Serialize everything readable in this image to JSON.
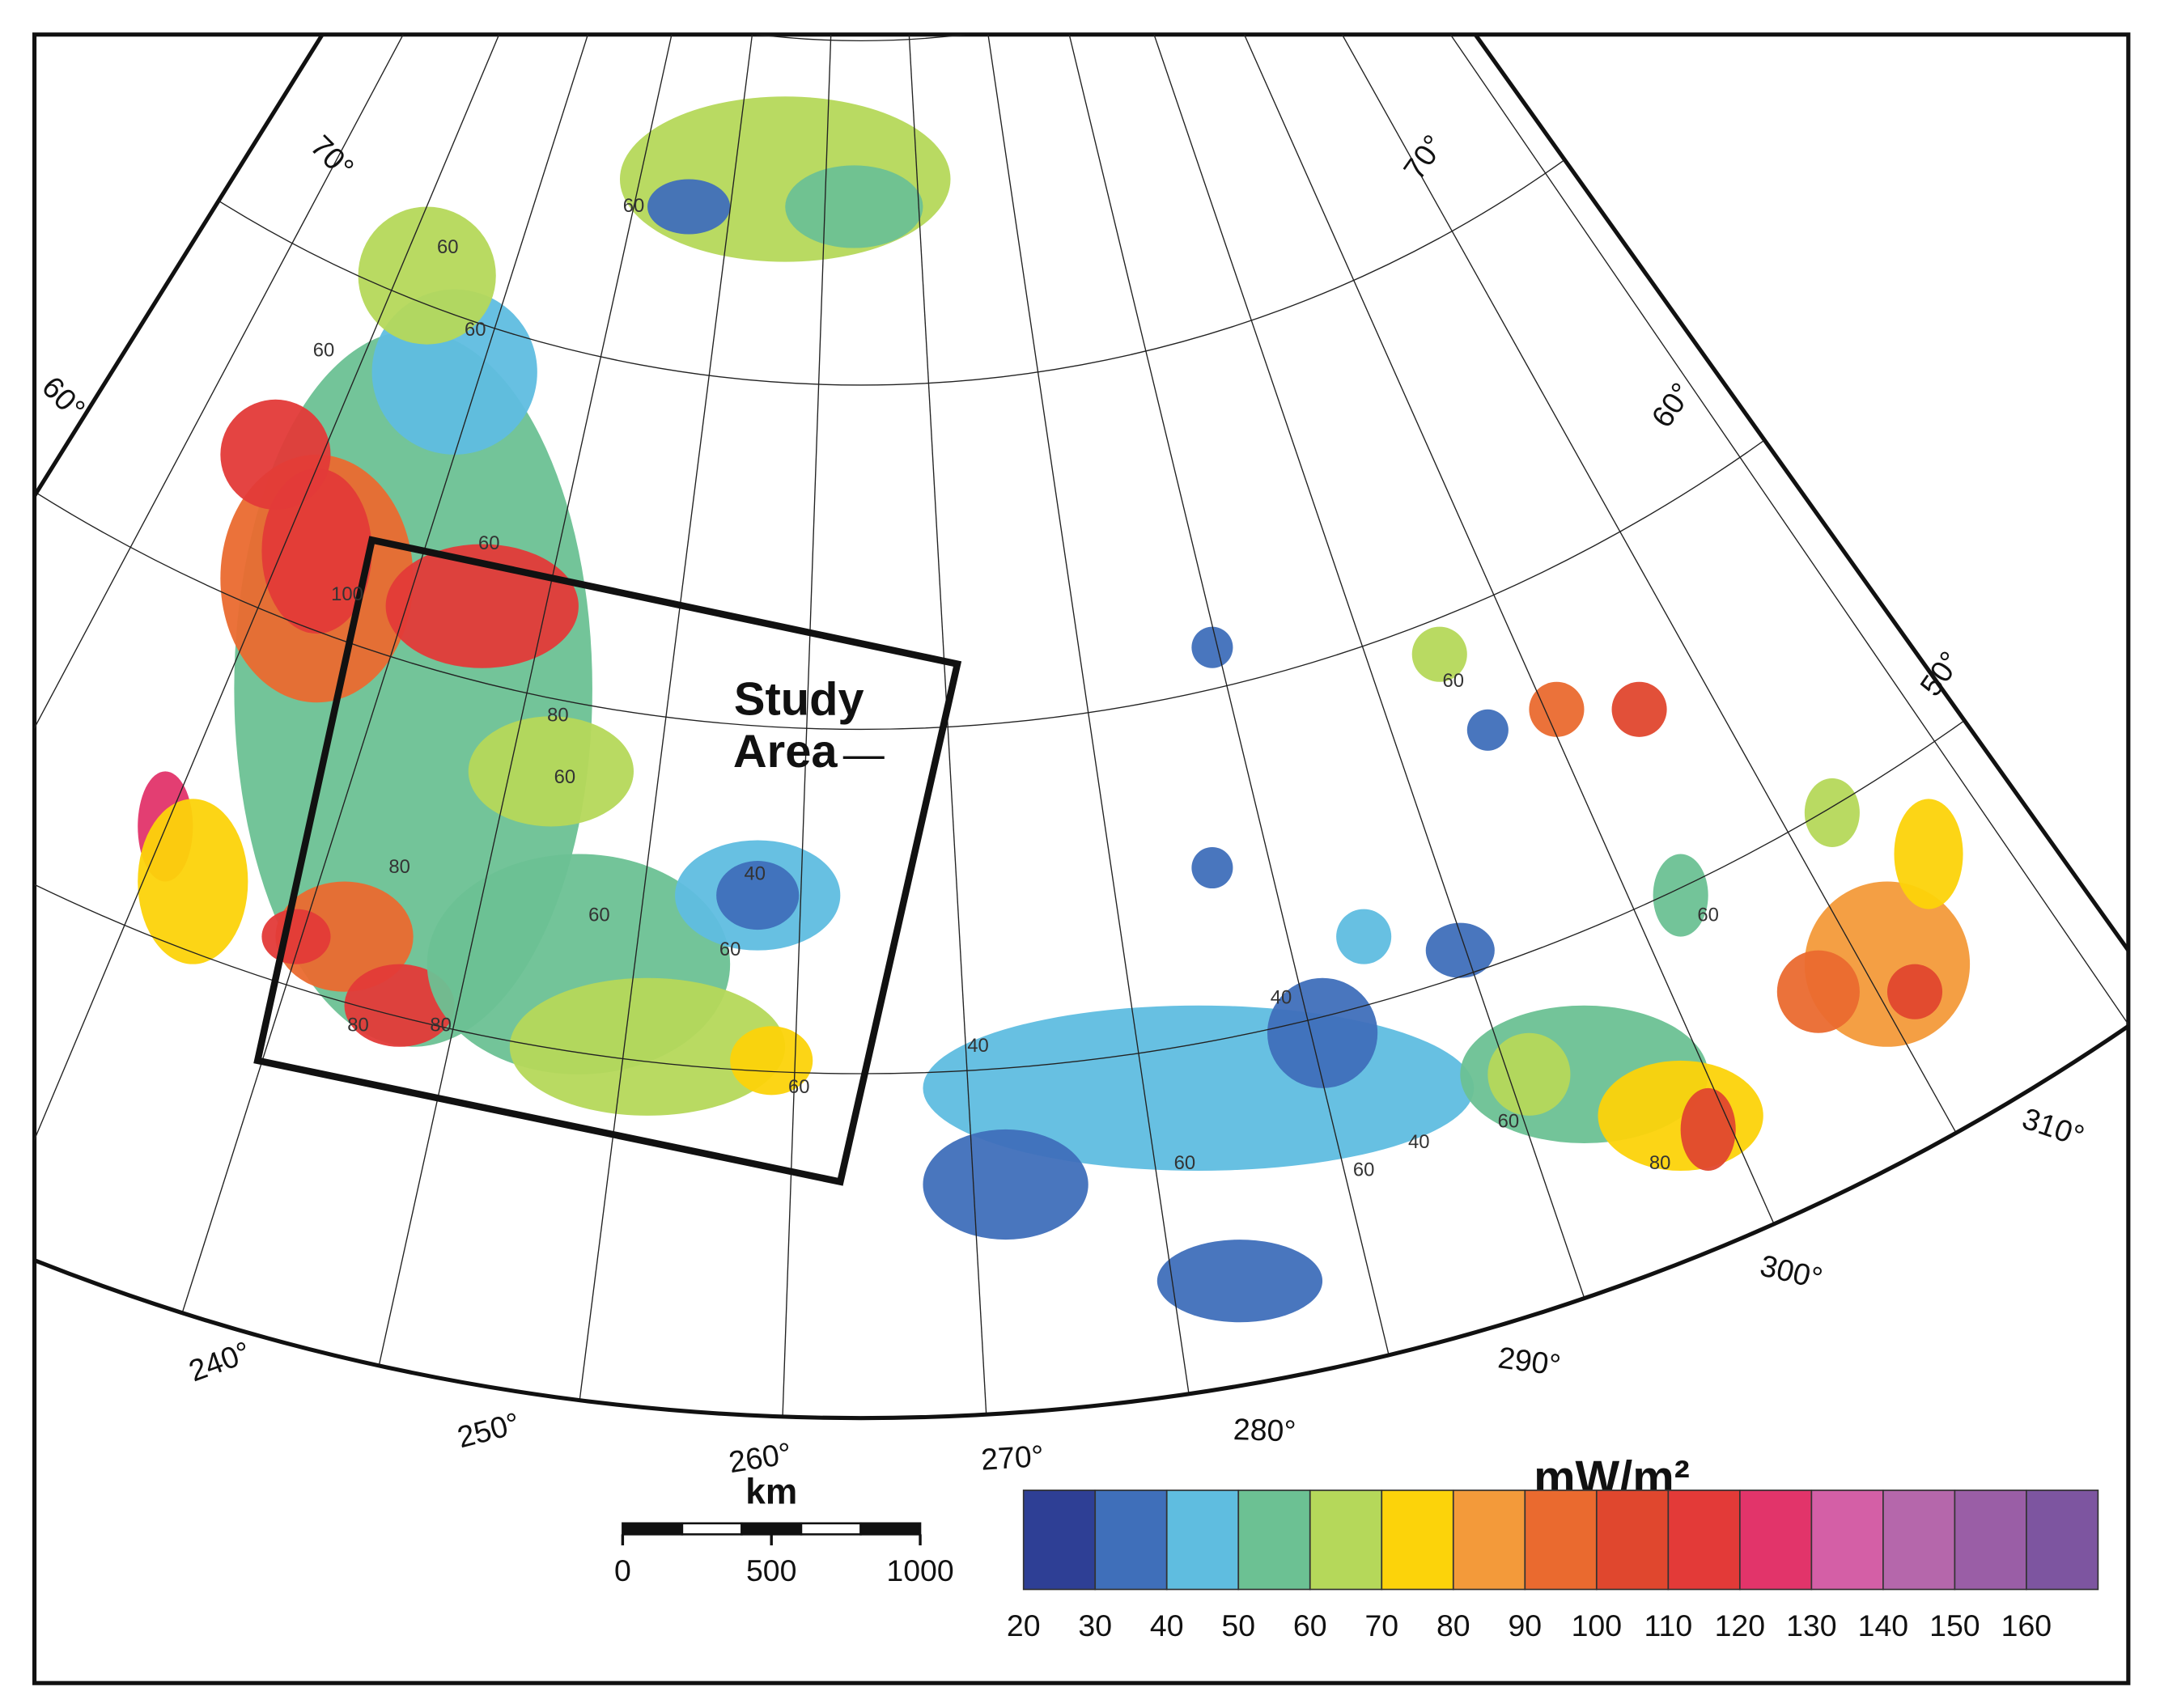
{
  "map": {
    "longitude_labels": [
      "240°",
      "250°",
      "260°",
      "270°",
      "280°",
      "290°",
      "300°",
      "310°"
    ],
    "latitude_labels": [
      "70°",
      "60°",
      "70°",
      "60°",
      "50°"
    ],
    "contour_labels": [
      "60",
      "60",
      "60",
      "60",
      "100",
      "80",
      "60",
      "80",
      "60",
      "80",
      "80",
      "40",
      "60",
      "40",
      "40",
      "60",
      "60",
      "40",
      "60",
      "60",
      "60",
      "80",
      "60",
      "60"
    ],
    "annotation_lines": [
      "Study",
      "Area"
    ]
  },
  "scale_bar": {
    "unit": "km",
    "ticks": [
      0,
      500,
      1000
    ]
  },
  "legend": {
    "unit": "mW/m²",
    "ticks": [
      20,
      30,
      40,
      50,
      60,
      70,
      80,
      90,
      100,
      110,
      120,
      130,
      140,
      150,
      160
    ],
    "colors": [
      "#2e3f95",
      "#3f6fba",
      "#5fbde0",
      "#6cc193",
      "#b5d85a",
      "#fcd30a",
      "#f39a3a",
      "#ea6a2f",
      "#e0472e",
      "#e33a38",
      "#e2346a",
      "#d45fa6",
      "#b567ab",
      "#9a5ea6",
      "#7d55a0"
    ]
  }
}
